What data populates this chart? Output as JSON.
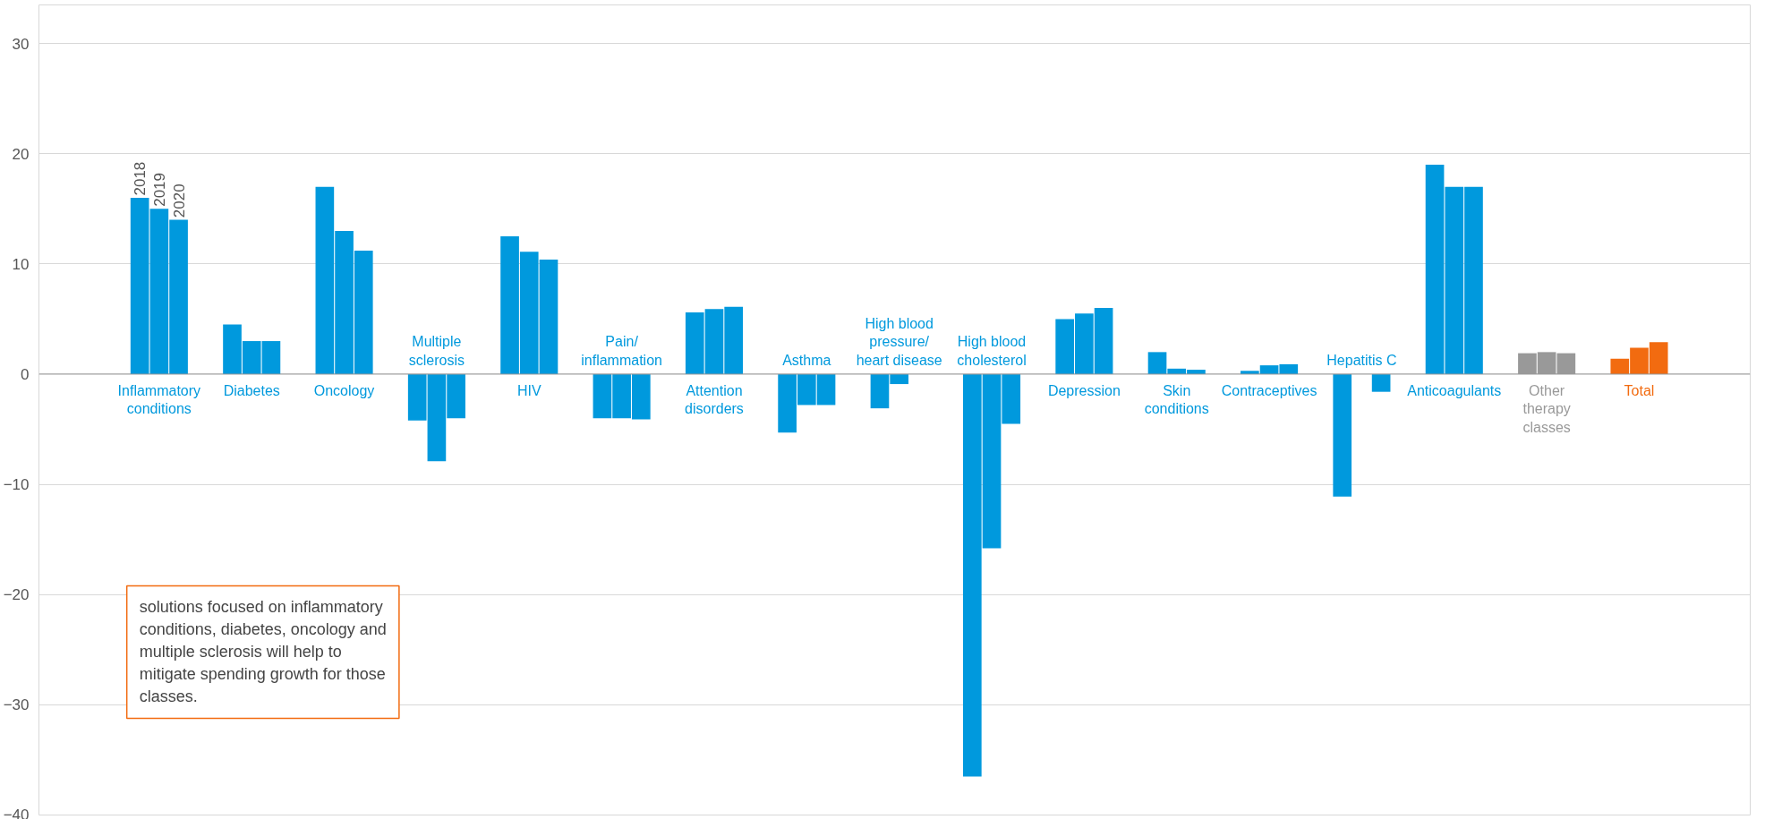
{
  "chart_data": {
    "type": "bar",
    "categories": [
      "Inflammatory\nconditions",
      "Diabetes",
      "Oncology",
      "Multiple\nsclerosis",
      "HIV",
      "Pain/\ninflammation",
      "Attention\ndisorders",
      "Asthma",
      "High blood\npressure/\nheart disease",
      "High blood\ncholesterol",
      "Depression",
      "Skin\nconditions",
      "Contraceptives",
      "Hepatitis C",
      "Anticoagulants",
      "Other\ntherapy\nclasses",
      "Total"
    ],
    "series": [
      {
        "name": "2018",
        "colors": [
          "#0099dd",
          "#0099dd",
          "#0099dd",
          "#0099dd",
          "#0099dd",
          "#0099dd",
          "#0099dd",
          "#0099dd",
          "#0099dd",
          "#0099dd",
          "#0099dd",
          "#0099dd",
          "#0099dd",
          "#0099dd",
          "#0099dd",
          "#999999",
          "#f26b10"
        ],
        "values": [
          16,
          4.5,
          17,
          -4.2,
          12.5,
          -4.0,
          5.6,
          -5.3,
          -3.1,
          -36.5,
          5.0,
          2.0,
          0.3,
          -11.1,
          19,
          1.9,
          1.4
        ]
      },
      {
        "name": "2019",
        "colors": [
          "#0099dd",
          "#0099dd",
          "#0099dd",
          "#0099dd",
          "#0099dd",
          "#0099dd",
          "#0099dd",
          "#0099dd",
          "#0099dd",
          "#0099dd",
          "#0099dd",
          "#0099dd",
          "#0099dd",
          "#0099dd",
          "#0099dd",
          "#999999",
          "#f26b10"
        ],
        "values": [
          15,
          3.0,
          13,
          -7.9,
          11.1,
          -4.0,
          5.9,
          -2.8,
          -0.9,
          -15.8,
          5.5,
          0.5,
          0.8,
          null,
          17,
          2.0,
          2.4
        ]
      },
      {
        "name": "2020",
        "colors": [
          "#0099dd",
          "#0099dd",
          "#0099dd",
          "#0099dd",
          "#0099dd",
          "#0099dd",
          "#0099dd",
          "#0099dd",
          "#0099dd",
          "#0099dd",
          "#0099dd",
          "#0099dd",
          "#0099dd",
          "#0099dd",
          "#0099dd",
          "#999999",
          "#f26b10"
        ],
        "values": [
          14,
          3.0,
          11.2,
          -4.0,
          10.4,
          -4.1,
          6.1,
          -2.8,
          null,
          -4.5,
          6.0,
          0.4,
          0.9,
          -1.6,
          17,
          1.9,
          2.9
        ]
      }
    ],
    "ylim": [
      -40,
      33.5
    ],
    "yticks": [
      -40,
      -30,
      -20,
      -10,
      0,
      10,
      20,
      30
    ],
    "grid": "y",
    "annotations": [
      "solutions focused on inflammatory conditions, diabetes, oncology and multiple sclerosis will help to mitigate spending growth for those classes."
    ]
  }
}
